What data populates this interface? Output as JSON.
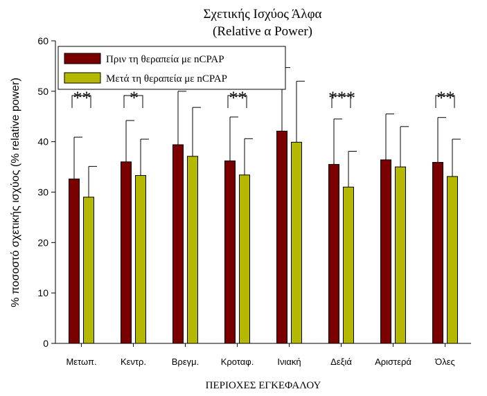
{
  "chart_data": {
    "type": "bar",
    "title": "Σχετικής Ισχύος Άλφα",
    "subtitle": "(Relative α Power)",
    "xlabel": "ΠΕΡΙΟΧΕΣ ΕΓΚΕΦΑΛΟΥ",
    "ylabel": "% ποσοστό σχετικής ισχύος (% relative power)",
    "ylim": [
      0,
      60
    ],
    "yticks": [
      0,
      10,
      20,
      30,
      40,
      50,
      60
    ],
    "categories": [
      "Μετωπ.",
      "Κεντρ.",
      "Βρεγμ.",
      "Κροταφ.",
      "Ινιακή",
      "Δεξιά",
      "Αριστερά",
      "Όλες"
    ],
    "series": [
      {
        "name": "Πριν τη θεραπεία με nCPAP",
        "color": "#7a0000",
        "values": [
          32.6,
          36.0,
          39.4,
          36.2,
          42.1,
          35.5,
          36.4,
          35.9
        ],
        "errors": [
          8.3,
          8.2,
          10.6,
          8.7,
          12.6,
          9.0,
          9.1,
          8.9
        ]
      },
      {
        "name": "Μετά τη θεραπεία με nCPAP",
        "color": "#b5b800",
        "values": [
          29.0,
          33.3,
          37.1,
          33.4,
          39.9,
          31.0,
          35.0,
          33.1
        ],
        "errors": [
          6.1,
          7.2,
          9.7,
          7.2,
          12.1,
          7.1,
          8.0,
          7.4
        ]
      }
    ],
    "significance": [
      {
        "category": "Μετωπ.",
        "label": "**"
      },
      {
        "category": "Κεντρ.",
        "label": "*"
      },
      {
        "category": "Κροταφ.",
        "label": "**"
      },
      {
        "category": "Δεξιά",
        "label": "***"
      },
      {
        "category": "Όλες",
        "label": "**"
      }
    ],
    "legend_position": "top-left",
    "grid": false
  }
}
